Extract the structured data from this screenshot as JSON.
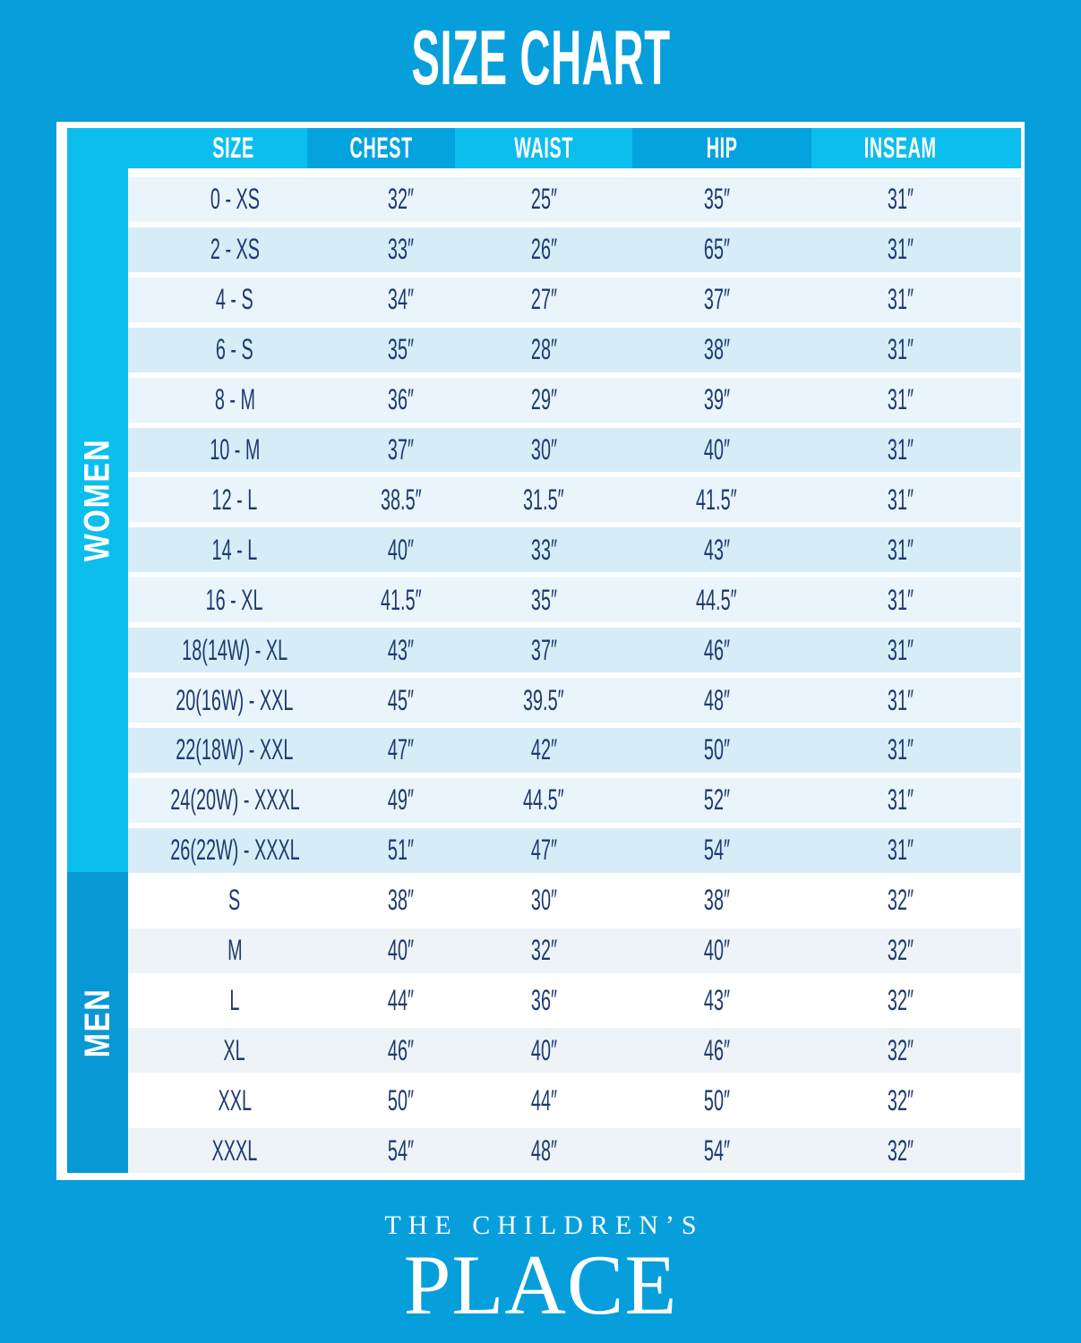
{
  "chart_data": {
    "type": "table",
    "title": "SIZE CHART",
    "columns": [
      "SIZE",
      "CHEST",
      "WAIST",
      "HIP",
      "INSEAM"
    ],
    "sections": [
      {
        "name": "WOMEN",
        "rows": [
          [
            "0 - XS",
            "32″",
            "25″",
            "35″",
            "31″"
          ],
          [
            "2 - XS",
            "33″",
            "26″",
            "65″",
            "31″"
          ],
          [
            "4 - S",
            "34″",
            "27″",
            "37″",
            "31″"
          ],
          [
            "6 - S",
            "35″",
            "28″",
            "38″",
            "31″"
          ],
          [
            "8 - M",
            "36″",
            "29″",
            "39″",
            "31″"
          ],
          [
            "10 - M",
            "37″",
            "30″",
            "40″",
            "31″"
          ],
          [
            "12 - L",
            "38.5″",
            "31.5″",
            "41.5″",
            "31″"
          ],
          [
            "14 - L",
            "40″",
            "33″",
            "43″",
            "31″"
          ],
          [
            "16 - XL",
            "41.5″",
            "35″",
            "44.5″",
            "31″"
          ],
          [
            "18(14W) - XL",
            "43″",
            "37″",
            "46″",
            "31″"
          ],
          [
            "20(16W) - XXL",
            "45″",
            "39.5″",
            "48″",
            "31″"
          ],
          [
            "22(18W) - XXL",
            "47″",
            "42″",
            "50″",
            "31″"
          ],
          [
            "24(20W) - XXXL",
            "49″",
            "44.5″",
            "52″",
            "31″"
          ],
          [
            "26(22W) - XXXL",
            "51″",
            "47″",
            "54″",
            "31″"
          ]
        ]
      },
      {
        "name": "MEN",
        "rows": [
          [
            "S",
            "38″",
            "30″",
            "38″",
            "32″"
          ],
          [
            "M",
            "40″",
            "32″",
            "40″",
            "32″"
          ],
          [
            "L",
            "44″",
            "36″",
            "43″",
            "32″"
          ],
          [
            "XL",
            "46″",
            "40″",
            "46″",
            "32″"
          ],
          [
            "XXL",
            "50″",
            "44″",
            "50″",
            "32″"
          ],
          [
            "XXXL",
            "54″",
            "48″",
            "54″",
            "32″"
          ]
        ]
      }
    ]
  },
  "brand": {
    "line1": "THE CHILDREN’S",
    "line2": "PLACE"
  },
  "colors": {
    "background": "#069fdb",
    "accent_cyan": "#0cbeee",
    "accent_blue_dark": "#04a3e0",
    "men_sidebar": "#0898d6",
    "row_light": "#e9f5fb",
    "row_dark": "#d6edf8",
    "row_white": "#ffffff",
    "row_gray": "#edf3f7",
    "text_navy": "#1e3a6e",
    "text_white": "#ffffff"
  }
}
